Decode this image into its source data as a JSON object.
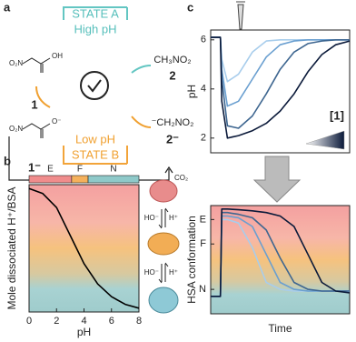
{
  "panel_labels": [
    "a",
    "b",
    "c"
  ],
  "scheme": {
    "state_a": "STATE A",
    "high_ph": "High pH",
    "low_ph": "Low pH",
    "state_b": "STATE B",
    "compound_1": "1",
    "compound_1_anion": "1⁻",
    "compound_2": "2",
    "compound_2_anion": "2⁻",
    "product_2": "CH₃NO₂",
    "product_2_anion": "⁻CH₂NO₂",
    "co2": "CO₂",
    "nitro": "O₂N",
    "hydroxyl": "OH",
    "oxyanion": "O⁻"
  },
  "equilibrium": {
    "base": "HO⁻",
    "acid": "H⁺"
  },
  "chart_data": [
    {
      "type": "line",
      "xlabel": "pH",
      "ylabel": "Mole dissociated H⁺/BSA",
      "x": [
        0,
        1,
        2,
        3,
        4,
        5,
        6,
        7,
        8
      ],
      "values": [
        0.97,
        0.93,
        0.82,
        0.6,
        0.38,
        0.22,
        0.12,
        0.06,
        0.03
      ],
      "color": "#000000",
      "xlim": [
        0,
        8
      ],
      "xticks": [
        0,
        2,
        4,
        6,
        8
      ],
      "ylim": [
        0,
        1
      ],
      "regions": [
        {
          "label": "E",
          "from": 0,
          "to": 3.1,
          "color": "#f08c8c"
        },
        {
          "label": "F",
          "from": 3.1,
          "to": 4.3,
          "color": "#f5b15c"
        },
        {
          "label": "N",
          "from": 4.3,
          "to": 8,
          "color": "#8ec9c9"
        }
      ]
    },
    {
      "type": "line",
      "ylabel": "pH",
      "legend_label": "[1]",
      "x": [
        0,
        0.07,
        0.08,
        0.12,
        0.2,
        0.3,
        0.4,
        0.5,
        0.6,
        0.7,
        0.8,
        0.9,
        1
      ],
      "xlim": [
        0,
        1
      ],
      "ylim": [
        1.4,
        6.4
      ],
      "yticks": [
        2,
        4,
        6
      ],
      "series": [
        {
          "color": "#a8cdec",
          "values": [
            6.1,
            6.1,
            5.2,
            4.3,
            4.6,
            5.5,
            5.95,
            6.0,
            6.0,
            6.0,
            6.0,
            6.0,
            6.0
          ]
        },
        {
          "color": "#6a9fd0",
          "values": [
            6.1,
            6.1,
            4.8,
            3.3,
            3.5,
            4.4,
            5.3,
            5.8,
            5.95,
            6.0,
            6.0,
            6.0,
            6.0
          ]
        },
        {
          "color": "#3e6690",
          "values": [
            6.1,
            6.1,
            4.4,
            2.5,
            2.4,
            2.9,
            3.8,
            4.8,
            5.5,
            5.85,
            5.95,
            6.0,
            6.0
          ]
        },
        {
          "color": "#0b1a3a",
          "values": [
            6.1,
            6.1,
            3.5,
            2.0,
            2.1,
            2.3,
            2.6,
            3.1,
            3.8,
            4.7,
            5.4,
            5.8,
            5.95
          ]
        }
      ]
    },
    {
      "type": "line",
      "ylabel": "HSA conformation",
      "xlabel": "Time",
      "x": [
        0,
        0.07,
        0.08,
        0.12,
        0.2,
        0.3,
        0.4,
        0.5,
        0.6,
        0.7,
        0.8,
        0.9,
        1
      ],
      "xlim": [
        0,
        1
      ],
      "ylim": [
        0.3,
        3.4
      ],
      "yticks": [
        {
          "value": 3,
          "label": "E"
        },
        {
          "value": 2.3,
          "label": "F"
        },
        {
          "value": 1,
          "label": "N"
        }
      ],
      "series": [
        {
          "color": "#a8cdec",
          "values": [
            0.8,
            0.8,
            3.0,
            3.0,
            2.9,
            2.2,
            1.2,
            1.0,
            0.95,
            0.95,
            0.95,
            0.95,
            0.95
          ]
        },
        {
          "color": "#6a9fd0",
          "values": [
            0.8,
            0.8,
            3.1,
            3.1,
            3.05,
            2.8,
            2.0,
            1.2,
            1.0,
            0.95,
            0.95,
            0.95,
            0.95
          ]
        },
        {
          "color": "#3e6690",
          "values": [
            0.8,
            0.8,
            3.2,
            3.2,
            3.15,
            3.05,
            2.7,
            1.9,
            1.2,
            1.0,
            0.95,
            0.95,
            0.95
          ]
        },
        {
          "color": "#0b1a3a",
          "values": [
            0.8,
            0.8,
            3.3,
            3.3,
            3.28,
            3.25,
            3.2,
            3.1,
            2.8,
            2.0,
            1.2,
            0.95,
            0.9
          ]
        }
      ]
    }
  ]
}
